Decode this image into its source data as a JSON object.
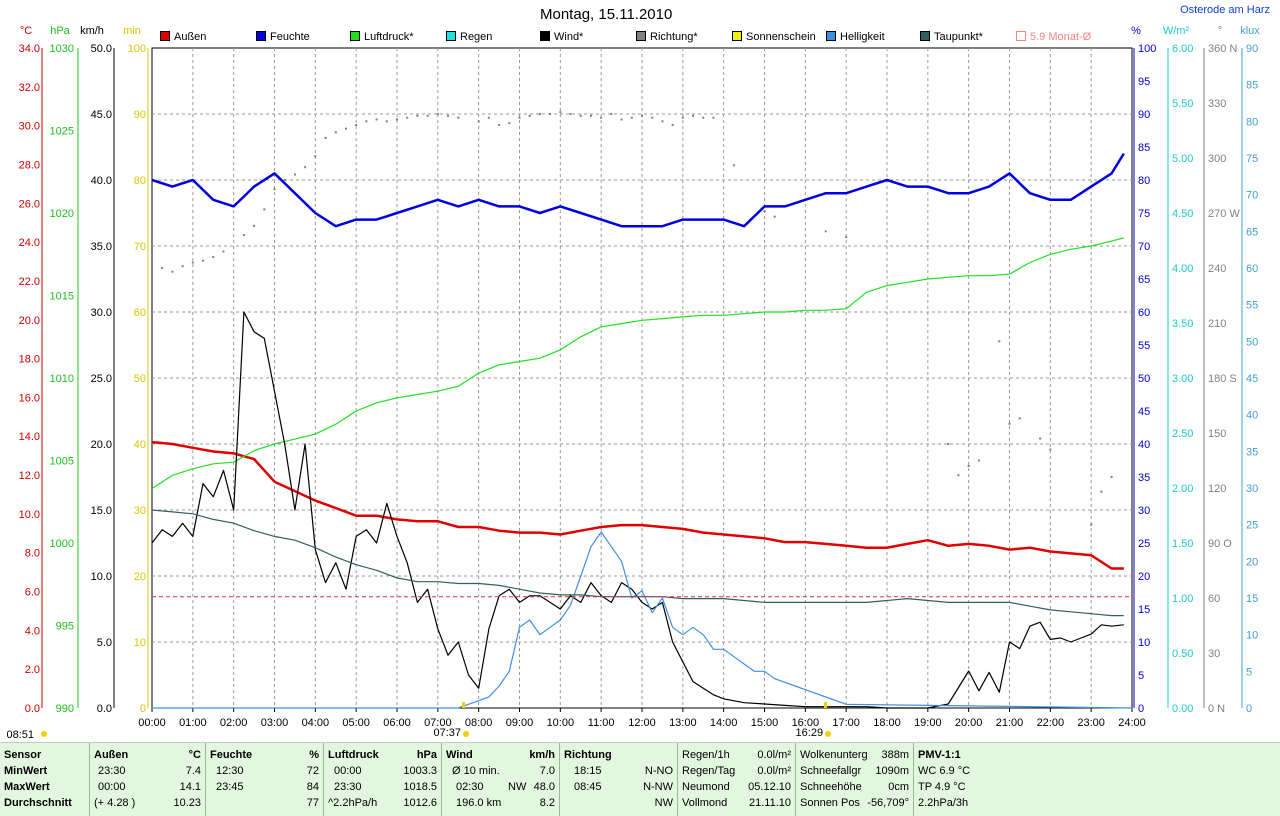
{
  "title": "Montag, 15.11.2010",
  "location": "Osterode am Harz",
  "axis_units": {
    "temp": "°C",
    "pressure": "hPa",
    "wind": "km/h",
    "sun": "min",
    "humidity": "%",
    "radiation": "W/m²",
    "direction": "°",
    "brightness": "klux"
  },
  "axis_ticks": {
    "temp": [
      "34.0",
      "32.0",
      "30.0",
      "28.0",
      "26.0",
      "24.0",
      "22.0",
      "20.0",
      "18.0",
      "16.0",
      "14.0",
      "12.0",
      "10.0",
      "8.0",
      "6.0",
      "4.0",
      "2.0",
      "0.0"
    ],
    "pressure": [
      "1030",
      "1025",
      "1020",
      "1015",
      "1010",
      "1005",
      "1000",
      "995",
      "990"
    ],
    "wind": [
      "50.0",
      "45.0",
      "40.0",
      "35.0",
      "30.0",
      "25.0",
      "20.0",
      "15.0",
      "10.0",
      "5.0",
      "0.0"
    ],
    "sun": [
      "100",
      "90",
      "80",
      "70",
      "60",
      "50",
      "40",
      "30",
      "20",
      "10",
      "0"
    ],
    "humidity": [
      "100",
      "95",
      "90",
      "85",
      "80",
      "75",
      "70",
      "65",
      "60",
      "55",
      "50",
      "45",
      "40",
      "35",
      "30",
      "25",
      "20",
      "15",
      "10",
      "5",
      "0"
    ],
    "radiation": [
      "6.00",
      "5.50",
      "5.00",
      "4.50",
      "4.00",
      "3.50",
      "3.00",
      "2.50",
      "2.00",
      "1.50",
      "1.00",
      "0.50",
      "0.00"
    ],
    "direction": [
      "360 N",
      "330",
      "300",
      "270 W",
      "240",
      "210",
      "180 S",
      "150",
      "120",
      "90 O",
      "60",
      "30",
      "0 N"
    ],
    "brightness": [
      "90",
      "85",
      "80",
      "75",
      "70",
      "65",
      "60",
      "55",
      "50",
      "45",
      "40",
      "35",
      "30",
      "25",
      "20",
      "15",
      "10",
      "5",
      "0"
    ]
  },
  "x_ticks": [
    "00:00",
    "01:00",
    "02:00",
    "03:00",
    "04:00",
    "05:00",
    "06:00",
    "07:00",
    "08:00",
    "09:00",
    "10:00",
    "11:00",
    "12:00",
    "13:00",
    "14:00",
    "15:00",
    "16:00",
    "17:00",
    "18:00",
    "19:00",
    "20:00",
    "21:00",
    "22:00",
    "23:00",
    "24:00"
  ],
  "sun_marks": {
    "sunrise": "07:37",
    "sunset": "16:29",
    "sunshine_start": "08:51"
  },
  "legend": [
    {
      "label": "Außen",
      "color": "#e00000"
    },
    {
      "label": "Feuchte",
      "color": "#0000e0"
    },
    {
      "label": "Luftdruck*",
      "color": "#20e020"
    },
    {
      "label": "Regen",
      "color": "#20e0e0"
    },
    {
      "label": "Wind*",
      "color": "#000000"
    },
    {
      "label": "Richtung*",
      "color": "#808080"
    },
    {
      "label": "Sonnenschein",
      "color": "#f0f000"
    },
    {
      "label": "Helligkeit",
      "color": "#4090e0"
    },
    {
      "label": "Taupunkt*",
      "color": "#306060"
    },
    {
      "label": "5.9 Monat-Ø",
      "color": "#ff8080"
    }
  ],
  "chart_data": {
    "type": "line",
    "title": "Montag, 15.11.2010",
    "x_unit": "hours",
    "xlim": [
      0,
      24
    ],
    "grid": true,
    "legend_position": "top",
    "series": [
      {
        "name": "Außen",
        "axis": "temp",
        "ylim": [
          0,
          35
        ],
        "color": "#e00000",
        "x": [
          0,
          0.5,
          1,
          1.5,
          2,
          2.5,
          3,
          3.5,
          4,
          4.5,
          5,
          5.5,
          6,
          6.5,
          7,
          7.5,
          8,
          8.5,
          9,
          9.5,
          10,
          10.5,
          11,
          11.5,
          12,
          12.5,
          13,
          13.5,
          14,
          14.5,
          15,
          15.5,
          16,
          16.5,
          17,
          17.5,
          18,
          18.5,
          19,
          19.5,
          20,
          20.5,
          21,
          21.5,
          22,
          22.5,
          23,
          23.5,
          23.8
        ],
        "y": [
          14.1,
          14.0,
          13.8,
          13.6,
          13.5,
          13.2,
          12.0,
          11.5,
          11.0,
          10.6,
          10.2,
          10.2,
          10.0,
          9.9,
          9.9,
          9.6,
          9.6,
          9.4,
          9.3,
          9.3,
          9.2,
          9.4,
          9.6,
          9.7,
          9.7,
          9.6,
          9.5,
          9.3,
          9.2,
          9.1,
          9.0,
          8.8,
          8.8,
          8.7,
          8.6,
          8.5,
          8.5,
          8.7,
          8.9,
          8.6,
          8.7,
          8.6,
          8.4,
          8.5,
          8.3,
          8.2,
          8.1,
          7.4,
          7.4
        ]
      },
      {
        "name": "Feuchte",
        "axis": "humidity",
        "ylim": [
          0,
          100
        ],
        "color": "#0000e0",
        "x": [
          0,
          0.5,
          1,
          1.5,
          2,
          2.5,
          3,
          3.5,
          4,
          4.5,
          5,
          5.5,
          6,
          6.5,
          7,
          7.5,
          8,
          8.5,
          9,
          9.5,
          10,
          10.5,
          11,
          11.5,
          12,
          12.5,
          13,
          13.5,
          14,
          14.5,
          15,
          15.5,
          16,
          16.5,
          17,
          17.5,
          18,
          18.5,
          19,
          19.5,
          20,
          20.5,
          21,
          21.5,
          22,
          22.5,
          23,
          23.5,
          23.8
        ],
        "y": [
          80,
          79,
          80,
          77,
          76,
          79,
          81,
          78,
          75,
          73,
          74,
          74,
          75,
          76,
          77,
          76,
          77,
          76,
          76,
          75,
          76,
          75,
          74,
          73,
          73,
          73,
          74,
          74,
          74,
          73,
          76,
          76,
          77,
          78,
          78,
          79,
          80,
          79,
          79,
          78,
          78,
          79,
          81,
          78,
          77,
          77,
          79,
          81,
          84
        ]
      },
      {
        "name": "Luftdruck*",
        "axis": "pressure",
        "ylim": [
          990,
          1030
        ],
        "color": "#20e020",
        "x": [
          0,
          0.5,
          1,
          1.5,
          2,
          2.5,
          3,
          3.5,
          4,
          4.5,
          5,
          5.5,
          6,
          6.5,
          7,
          7.5,
          8,
          8.5,
          9,
          9.5,
          10,
          10.5,
          11,
          11.5,
          12,
          12.5,
          13,
          13.5,
          14,
          14.5,
          15,
          15.5,
          16,
          16.5,
          17,
          17.5,
          18,
          18.5,
          19,
          19.5,
          20,
          20.5,
          21,
          21.5,
          22,
          22.5,
          23,
          23.5,
          23.8
        ],
        "y": [
          1003.3,
          1004.1,
          1004.5,
          1004.8,
          1004.9,
          1005.6,
          1006.0,
          1006.3,
          1006.6,
          1007.2,
          1008.0,
          1008.5,
          1008.8,
          1009.0,
          1009.2,
          1009.5,
          1010.3,
          1010.8,
          1011.0,
          1011.2,
          1011.7,
          1012.5,
          1013.1,
          1013.3,
          1013.5,
          1013.6,
          1013.7,
          1013.8,
          1013.8,
          1013.9,
          1014.0,
          1014.0,
          1014.1,
          1014.1,
          1014.2,
          1015.2,
          1015.6,
          1015.8,
          1016.0,
          1016.1,
          1016.2,
          1016.2,
          1016.3,
          1017.0,
          1017.5,
          1017.8,
          1018.0,
          1018.3,
          1018.5
        ]
      },
      {
        "name": "Wind*",
        "axis": "wind",
        "ylim": [
          0,
          50
        ],
        "color": "#000000",
        "x": [
          0,
          0.25,
          0.5,
          0.75,
          1,
          1.25,
          1.5,
          1.75,
          2,
          2.25,
          2.5,
          2.75,
          3,
          3.25,
          3.5,
          3.75,
          4,
          4.25,
          4.5,
          4.75,
          5,
          5.25,
          5.5,
          5.75,
          6,
          6.25,
          6.5,
          6.75,
          7,
          7.25,
          7.5,
          7.75,
          8,
          8.25,
          8.5,
          8.75,
          9,
          9.25,
          9.5,
          9.75,
          10,
          10.25,
          10.5,
          10.75,
          11,
          11.25,
          11.5,
          11.75,
          12,
          12.25,
          12.5,
          12.75,
          13,
          13.25,
          13.5,
          13.75,
          14,
          14.5,
          15,
          15.5,
          16,
          16.5,
          17,
          17.5,
          18,
          18.5,
          19,
          19.5,
          20,
          20.25,
          20.5,
          20.75,
          21,
          21.25,
          21.5,
          21.75,
          22,
          22.25,
          22.5,
          22.75,
          23,
          23.25,
          23.5,
          23.8
        ],
        "y": [
          12.5,
          13.5,
          13,
          14,
          13,
          17,
          16,
          18,
          15,
          30,
          28.5,
          28,
          24,
          20,
          15,
          20,
          12,
          9.5,
          11,
          9,
          13,
          13.5,
          12.5,
          15.5,
          13,
          11,
          8,
          9,
          6,
          4,
          5,
          2.5,
          1.5,
          6,
          8.5,
          9,
          8,
          8.5,
          8.5,
          8,
          7.5,
          8.5,
          8,
          9.5,
          8.5,
          8,
          9.5,
          9,
          8,
          7.5,
          8,
          5,
          3.5,
          2,
          1.5,
          1,
          0.7,
          0.4,
          0.3,
          0.2,
          0.1,
          0.1,
          0.1,
          0.1,
          0,
          0,
          0,
          0.3,
          2.8,
          1.3,
          2.7,
          1.2,
          5,
          4.5,
          6.2,
          6.5,
          5.2,
          5.3,
          5,
          5.3,
          5.6,
          6.3,
          6.2,
          6.3
        ]
      },
      {
        "name": "Helligkeit",
        "axis": "brightness",
        "ylim": [
          0,
          90
        ],
        "color": "#4090e0",
        "x": [
          0,
          7.5,
          7.75,
          8,
          8.25,
          8.5,
          8.75,
          9,
          9.25,
          9.5,
          9.75,
          10,
          10.25,
          10.5,
          10.75,
          11,
          11.25,
          11.5,
          11.75,
          12,
          12.25,
          12.5,
          12.75,
          13,
          13.25,
          13.5,
          13.75,
          14,
          14.25,
          14.5,
          14.75,
          15,
          15.25,
          15.5,
          15.75,
          16,
          16.5,
          17,
          24
        ],
        "y": [
          0,
          0,
          0.5,
          1,
          1.5,
          3,
          5,
          11,
          12,
          10,
          11,
          12,
          14,
          18,
          22,
          24,
          22,
          20,
          15,
          16,
          13,
          15,
          11,
          10,
          11,
          10,
          8,
          8,
          7,
          6,
          5,
          5,
          4,
          3.5,
          3,
          2.5,
          1.5,
          0.5,
          0
        ]
      },
      {
        "name": "Taupunkt*",
        "axis": "temp",
        "ylim": [
          0,
          35
        ],
        "color": "#306060",
        "x": [
          0,
          0.5,
          1,
          1.5,
          2,
          2.5,
          3,
          3.5,
          4,
          4.5,
          5,
          5.5,
          6,
          6.5,
          7,
          7.5,
          8,
          8.5,
          9,
          9.5,
          10,
          10.5,
          11,
          11.5,
          12,
          12.5,
          13,
          13.5,
          14,
          14.5,
          15,
          15.5,
          16,
          16.5,
          17,
          17.5,
          18,
          18.5,
          19,
          19.5,
          20,
          20.5,
          21,
          21.5,
          22,
          22.5,
          23,
          23.5,
          23.8
        ],
        "y": [
          10.5,
          10.4,
          10.3,
          10.0,
          9.8,
          9.4,
          9.1,
          8.9,
          8.5,
          8.0,
          7.6,
          7.3,
          6.9,
          6.7,
          6.7,
          6.6,
          6.6,
          6.5,
          6.3,
          6.1,
          6.0,
          6.0,
          5.9,
          5.9,
          5.9,
          5.9,
          5.8,
          5.8,
          5.8,
          5.7,
          5.6,
          5.6,
          5.6,
          5.6,
          5.6,
          5.6,
          5.7,
          5.8,
          5.7,
          5.6,
          5.6,
          5.6,
          5.6,
          5.4,
          5.2,
          5.1,
          5.0,
          4.9,
          4.9
        ]
      },
      {
        "name": "5.9 Monat-Ø",
        "axis": "temp",
        "ylim": [
          0,
          35
        ],
        "color": "#ff8080",
        "x": [
          0,
          24
        ],
        "y": [
          5.9,
          5.9
        ]
      }
    ],
    "richtung": {
      "name": "Richtung*",
      "axis": "direction",
      "ylim": [
        0,
        360
      ],
      "color": "#808080",
      "x": [
        0.25,
        0.5,
        0.75,
        1.0,
        1.25,
        1.5,
        1.75,
        2.25,
        2.5,
        2.75,
        3.0,
        3.25,
        3.5,
        3.75,
        4.0,
        4.25,
        4.5,
        4.75,
        5.0,
        5.25,
        5.5,
        5.75,
        6.0,
        6.25,
        6.5,
        6.75,
        7.0,
        7.25,
        7.5,
        8.0,
        8.25,
        8.5,
        8.75,
        9.0,
        9.25,
        9.5,
        9.75,
        10.0,
        10.25,
        10.5,
        10.75,
        11.0,
        11.25,
        11.5,
        11.75,
        12.0,
        12.25,
        12.5,
        12.75,
        13.0,
        13.25,
        13.5,
        13.75,
        14.25,
        15.0,
        15.25,
        16.5,
        17.0,
        19.5,
        19.75,
        20.0,
        20.25,
        20.75,
        21.0,
        21.25,
        21.75,
        22.0,
        23.0,
        23.25,
        23.5
      ],
      "y": [
        240,
        238,
        241,
        243,
        244,
        246,
        249,
        258,
        263,
        272,
        283,
        288,
        291,
        295,
        301,
        311,
        314,
        316,
        318,
        320,
        321,
        320,
        321,
        322,
        323,
        323,
        324,
        323,
        322,
        320,
        322,
        318,
        319,
        322,
        323,
        324,
        324,
        325,
        324,
        323,
        323,
        322,
        324,
        321,
        322,
        323,
        322,
        320,
        318,
        322,
        323,
        322,
        322,
        296,
        271,
        268,
        260,
        257,
        144,
        127,
        132,
        135,
        200,
        155,
        158,
        147,
        141,
        100,
        118,
        126
      ]
    }
  },
  "footer": {
    "sensor": {
      "headers": [
        "Sensor",
        "MinWert",
        "MaxWert",
        "Durchschnitt"
      ]
    },
    "aussen": {
      "header": "Außen",
      "unit": "°C",
      "rows": [
        [
          "23:30",
          "7.4"
        ],
        [
          "00:00",
          "14.1"
        ],
        [
          "(+ 4.28 )",
          "10.23"
        ]
      ]
    },
    "feuchte": {
      "header": "Feuchte",
      "unit": "%",
      "rows": [
        [
          "12:30",
          "72"
        ],
        [
          "23:45",
          "84"
        ],
        [
          "",
          "77"
        ]
      ]
    },
    "luftdruck": {
      "header": "Luftdruck",
      "unit": "hPa",
      "rows": [
        [
          "00:00",
          "1003.3"
        ],
        [
          "23:30",
          "1018.5"
        ],
        [
          "^2.2hPa/h",
          "1012.6"
        ]
      ]
    },
    "wind": {
      "header": "Wind",
      "unit": "km/h",
      "rows": [
        [
          "Ø 10 min.",
          "",
          "7.0"
        ],
        [
          "02:30",
          "NW",
          "48.0"
        ],
        [
          "196.0 km",
          "",
          "8.2"
        ]
      ]
    },
    "richtung": {
      "header": "Richtung",
      "rows": [
        [
          "18:15",
          "N-NO"
        ],
        [
          "08:45",
          "N-NW"
        ],
        [
          "",
          "NW"
        ]
      ]
    },
    "regen": {
      "rows": [
        [
          "Regen/1h",
          "0.0l/m²"
        ],
        [
          "Regen/Tag",
          "0.0l/m²"
        ],
        [
          "Neumond",
          "05.12.10"
        ],
        [
          "Vollmond",
          "21.11.10"
        ]
      ]
    },
    "wolken": {
      "rows": [
        [
          "Wolkenunterg",
          "388m"
        ],
        [
          "Schneefallgr",
          "1090m"
        ],
        [
          "Schneehöhe",
          "0cm"
        ],
        [
          "Sonnen Pos",
          "-56,709°"
        ]
      ]
    },
    "pmv": {
      "rows": [
        "PMV-1:1",
        "WC 6.9 °C",
        "TP 4.9 °C",
        "2.2hPa/3h"
      ]
    }
  }
}
